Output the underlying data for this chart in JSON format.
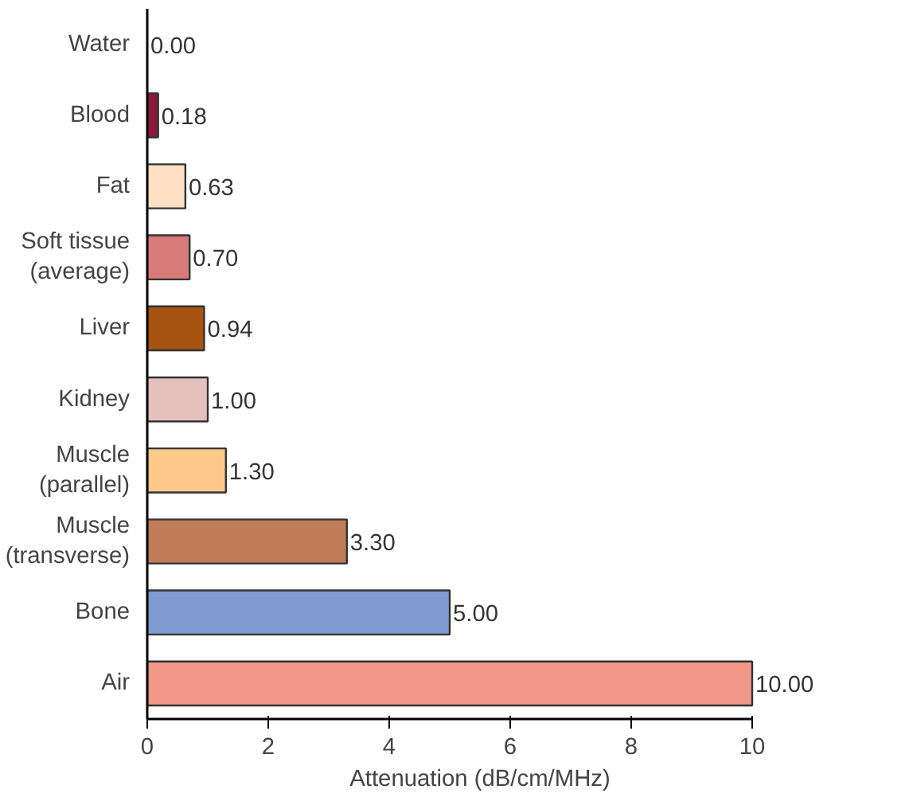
{
  "chart_data": {
    "type": "bar",
    "orientation": "horizontal",
    "xlabel": "Attenuation (dB/cm/MHz)",
    "categories": [
      "Water",
      "Blood",
      "Fat",
      "Soft tissue\n(average)",
      "Liver",
      "Kidney",
      "Muscle\n(parallel)",
      "Muscle\n(transverse)",
      "Bone",
      "Air"
    ],
    "values": [
      0.0,
      0.18,
      0.63,
      0.7,
      0.94,
      1.0,
      1.3,
      3.3,
      5.0,
      10.0
    ],
    "value_labels": [
      "0.00",
      "0.18",
      "0.63",
      "0.70",
      "0.94",
      "1.00",
      "1.30",
      "3.30",
      "5.00",
      "10.00"
    ],
    "colors": [
      "#ffffff",
      "#8b1a3a",
      "#fde0c4",
      "#d97a7a",
      "#a8530f",
      "#e6c0bd",
      "#fcc98a",
      "#c17c5a",
      "#7f9bd0",
      "#f2988a"
    ],
    "xlim": [
      0,
      10
    ],
    "xticks": [
      0,
      2,
      4,
      6,
      8,
      10
    ],
    "grid": false
  }
}
